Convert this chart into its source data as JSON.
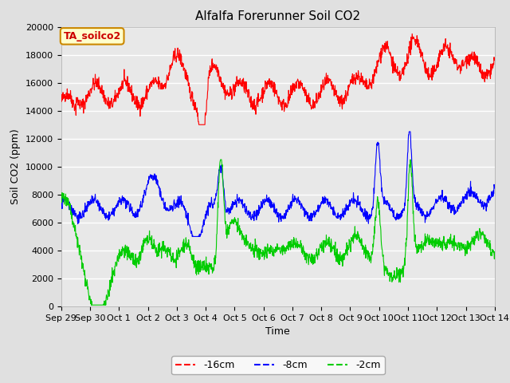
{
  "title": "Alfalfa Forerunner Soil CO2",
  "xlabel": "Time",
  "ylabel": "Soil CO2 (ppm)",
  "annotation": "TA_soilco2",
  "ylim": [
    0,
    20000
  ],
  "yticks": [
    0,
    2000,
    4000,
    6000,
    8000,
    10000,
    12000,
    14000,
    16000,
    18000,
    20000
  ],
  "x_tick_labels": [
    "Sep 29",
    "Sep 30",
    "Oct 1",
    "Oct 2",
    "Oct 3",
    "Oct 4",
    "Oct 5",
    "Oct 6",
    "Oct 7",
    "Oct 8",
    "Oct 9",
    "Oct 10",
    "Oct 11",
    "Oct 12",
    "Oct 13",
    "Oct 14"
  ],
  "legend_labels": [
    "-16cm",
    "-8cm",
    "-2cm"
  ],
  "line_colors": [
    "#ff0000",
    "#0000ff",
    "#00cc00"
  ],
  "bg_color": "#e0e0e0",
  "plot_bg_color": "#e8e8e8",
  "annotation_bg": "#ffffcc",
  "annotation_border": "#cc8800",
  "annotation_text_color": "#cc0000",
  "title_fontsize": 11,
  "label_fontsize": 9,
  "tick_fontsize": 8
}
